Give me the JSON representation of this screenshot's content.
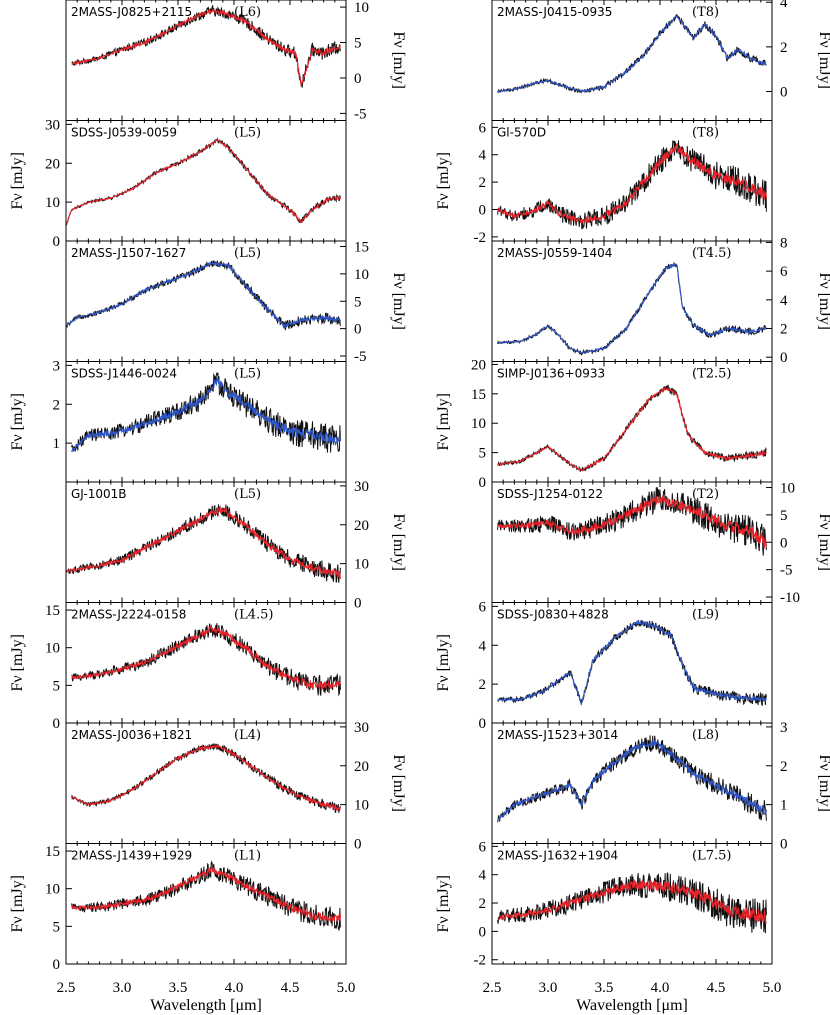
{
  "figure": {
    "xlabel": "Wavelength [μm]",
    "ylabel": "Fν [mJy]",
    "xticks": [
      "2.5",
      "3.0",
      "3.5",
      "4.0",
      "4.5",
      "5.0"
    ],
    "xlim": [
      2.5,
      5.0
    ],
    "colors": {
      "black": "#111111",
      "red": "#e8232a",
      "blue": "#2f56c8"
    }
  },
  "chart_data": [
    {
      "type": "line",
      "object": "2MASS-J0825+2115",
      "sptype": "(L6)",
      "column": "left",
      "row": 0,
      "model_color": "red",
      "axis_side": "right",
      "ylim": [
        -6,
        11
      ],
      "yticks": [
        "10",
        "5",
        "0",
        "-5"
      ],
      "ytick_values": [
        10,
        5,
        0,
        -5
      ],
      "x": [
        2.55,
        2.8,
        3.0,
        3.2,
        3.4,
        3.6,
        3.8,
        3.95,
        4.1,
        4.3,
        4.45,
        4.55,
        4.6,
        4.7,
        4.8,
        4.95
      ],
      "y": [
        2.0,
        2.8,
        4.0,
        5.0,
        6.5,
        8.2,
        9.5,
        9.0,
        8.0,
        5.5,
        4.0,
        3.5,
        -1.0,
        4.0,
        3.5,
        4.5
      ],
      "noise": 0.7
    },
    {
      "type": "line",
      "object": "SDSS-J0539-0059",
      "sptype": "(L5)",
      "column": "left",
      "row": 1,
      "model_color": "red",
      "axis_side": "left",
      "ylim": [
        0,
        31
      ],
      "yticks": [
        "30",
        "20",
        "10",
        "0"
      ],
      "ytick_values": [
        30,
        20,
        10,
        0
      ],
      "x": [
        2.5,
        2.55,
        2.7,
        2.9,
        3.1,
        3.3,
        3.5,
        3.7,
        3.85,
        3.95,
        4.1,
        4.3,
        4.5,
        4.6,
        4.7,
        4.85,
        4.95
      ],
      "y": [
        4.0,
        8.0,
        10.0,
        11.0,
        13.5,
        17.5,
        20.0,
        23.0,
        26.0,
        24.0,
        19.0,
        12.0,
        8.0,
        5.0,
        8.0,
        11.0,
        11.0
      ],
      "noise": 0.6
    },
    {
      "type": "line",
      "object": "2MASS-J1507-1627",
      "sptype": "(L5)",
      "column": "left",
      "row": 2,
      "model_color": "blue",
      "axis_side": "right",
      "ylim": [
        -6,
        16
      ],
      "yticks": [
        "15",
        "10",
        "5",
        "0",
        "-5"
      ],
      "ytick_values": [
        15,
        10,
        5,
        0,
        -5
      ],
      "x": [
        2.5,
        2.6,
        2.8,
        3.0,
        3.2,
        3.4,
        3.6,
        3.8,
        3.95,
        4.1,
        4.3,
        4.45,
        4.6,
        4.8,
        4.95
      ],
      "y": [
        0.5,
        2.0,
        3.0,
        4.5,
        7.0,
        8.5,
        10.0,
        12.0,
        11.5,
        8.0,
        3.5,
        0.5,
        1.5,
        2.0,
        1.5
      ],
      "noise": 0.7
    },
    {
      "type": "line",
      "object": "SDSS-J1446-0024",
      "sptype": "(L5)",
      "column": "left",
      "row": 3,
      "model_color": "blue",
      "axis_side": "left",
      "ylim": [
        0.0,
        3.1
      ],
      "yticks": [
        "3",
        "2",
        "1"
      ],
      "ytick_values": [
        3,
        2,
        1
      ],
      "x": [
        2.55,
        2.7,
        2.9,
        3.1,
        3.3,
        3.5,
        3.7,
        3.85,
        3.95,
        4.1,
        4.3,
        4.5,
        4.7,
        4.95
      ],
      "y": [
        0.8,
        1.2,
        1.25,
        1.4,
        1.6,
        1.8,
        2.1,
        2.6,
        2.3,
        2.0,
        1.6,
        1.3,
        1.2,
        1.1
      ],
      "noise": 0.28
    },
    {
      "type": "line",
      "object": "GJ-1001B",
      "sptype": "(L5)",
      "column": "left",
      "row": 4,
      "model_color": "red",
      "axis_side": "right",
      "ylim": [
        0,
        31
      ],
      "yticks": [
        "30",
        "20",
        "10",
        "0"
      ],
      "ytick_values": [
        30,
        20,
        10,
        0
      ],
      "x": [
        2.5,
        2.6,
        2.8,
        3.0,
        3.2,
        3.4,
        3.6,
        3.8,
        3.9,
        4.1,
        4.3,
        4.5,
        4.7,
        4.95
      ],
      "y": [
        8.0,
        8.5,
        9.5,
        11.0,
        14.0,
        17.0,
        20.0,
        23.0,
        24.0,
        20.0,
        15.0,
        11.0,
        9.0,
        7.0
      ],
      "noise": 1.8
    },
    {
      "type": "line",
      "object": "2MASS-J2224-0158",
      "sptype": "(L4.5)",
      "column": "left",
      "row": 5,
      "model_color": "red",
      "axis_side": "left",
      "ylim": [
        0,
        16
      ],
      "yticks": [
        "15",
        "10",
        "5",
        "0"
      ],
      "ytick_values": [
        15,
        10,
        5,
        0
      ],
      "x": [
        2.55,
        2.8,
        3.0,
        3.2,
        3.4,
        3.6,
        3.8,
        3.9,
        4.1,
        4.3,
        4.5,
        4.7,
        4.95
      ],
      "y": [
        6.0,
        6.5,
        7.2,
        8.0,
        9.5,
        11.0,
        12.5,
        12.0,
        10.0,
        7.5,
        6.0,
        5.0,
        5.0
      ],
      "noise": 1.0
    },
    {
      "type": "line",
      "object": "2MASS-J0036+1821",
      "sptype": "(L4)",
      "column": "left",
      "row": 6,
      "model_color": "red",
      "axis_side": "right",
      "ylim": [
        0,
        31
      ],
      "yticks": [
        "30",
        "20",
        "10",
        "0"
      ],
      "ytick_values": [
        30,
        20,
        10,
        0
      ],
      "x": [
        2.55,
        2.7,
        2.9,
        3.1,
        3.3,
        3.5,
        3.7,
        3.85,
        4.0,
        4.2,
        4.4,
        4.6,
        4.8,
        4.95
      ],
      "y": [
        12.0,
        10.0,
        11.0,
        14.0,
        18.0,
        22.0,
        24.5,
        25.0,
        23.0,
        19.0,
        15.0,
        12.0,
        10.0,
        9.0
      ],
      "noise": 0.9
    },
    {
      "type": "line",
      "object": "2MASS-J1439+1929",
      "sptype": "(L1)",
      "column": "left",
      "row": 7,
      "model_color": "red",
      "axis_side": "left",
      "ylim": [
        0,
        16
      ],
      "yticks": [
        "15",
        "10",
        "5",
        "0"
      ],
      "ytick_values": [
        15,
        10,
        5,
        0
      ],
      "x": [
        2.55,
        2.8,
        3.0,
        3.2,
        3.4,
        3.6,
        3.8,
        3.9,
        4.1,
        4.3,
        4.5,
        4.7,
        4.95
      ],
      "y": [
        7.5,
        7.5,
        8.0,
        8.5,
        9.5,
        11.0,
        12.5,
        12.0,
        10.5,
        9.0,
        7.5,
        6.5,
        6.0
      ],
      "noise": 1.1
    },
    {
      "type": "line",
      "object": "2MASS-J0415-0935",
      "sptype": "(T8)",
      "column": "right",
      "row": 0,
      "model_color": "blue",
      "axis_side": "right",
      "ylim": [
        -1.3,
        4.1
      ],
      "yticks": [
        "4",
        "2",
        "0"
      ],
      "ytick_values": [
        4,
        2,
        0
      ],
      "x": [
        2.55,
        2.7,
        2.9,
        3.0,
        3.1,
        3.3,
        3.5,
        3.7,
        3.85,
        4.0,
        4.15,
        4.25,
        4.3,
        4.4,
        4.5,
        4.6,
        4.7,
        4.8,
        4.95
      ],
      "y": [
        0.0,
        0.1,
        0.4,
        0.5,
        0.3,
        0.0,
        0.2,
        0.9,
        1.6,
        2.6,
        3.4,
        2.7,
        2.4,
        3.0,
        2.5,
        1.5,
        1.9,
        1.5,
        1.2
      ],
      "noise": 0.12
    },
    {
      "type": "line",
      "object": "Gl-570D",
      "sptype": "(T8)",
      "column": "right",
      "row": 1,
      "model_color": "red",
      "axis_side": "left",
      "ylim": [
        -2.3,
        6.5
      ],
      "yticks": [
        "6",
        "4",
        "2",
        "0",
        "-2"
      ],
      "ytick_values": [
        6,
        4,
        2,
        0,
        -2
      ],
      "x": [
        2.55,
        2.7,
        2.9,
        3.0,
        3.1,
        3.3,
        3.5,
        3.7,
        3.85,
        4.0,
        4.15,
        4.3,
        4.5,
        4.7,
        4.95
      ],
      "y": [
        0.0,
        -0.5,
        0.0,
        0.5,
        -0.3,
        -0.8,
        -0.5,
        0.5,
        2.0,
        3.5,
        4.5,
        3.5,
        2.5,
        2.0,
        1.0
      ],
      "noise": 0.8
    },
    {
      "type": "line",
      "object": "2MASS-J0559-1404",
      "sptype": "(T4.5)",
      "column": "right",
      "row": 2,
      "model_color": "blue",
      "axis_side": "right",
      "ylim": [
        -0.3,
        8.1
      ],
      "yticks": [
        "8",
        "6",
        "4",
        "2",
        "0"
      ],
      "ytick_values": [
        8,
        6,
        4,
        2,
        0
      ],
      "x": [
        2.55,
        2.75,
        2.9,
        3.0,
        3.1,
        3.2,
        3.3,
        3.5,
        3.7,
        3.9,
        4.05,
        4.15,
        4.2,
        4.3,
        4.45,
        4.6,
        4.8,
        4.95
      ],
      "y": [
        1.0,
        1.1,
        1.6,
        2.2,
        1.5,
        0.6,
        0.3,
        0.6,
        2.0,
        4.5,
        6.2,
        6.5,
        3.5,
        2.2,
        1.5,
        2.0,
        1.8,
        2.0
      ],
      "noise": 0.18
    },
    {
      "type": "line",
      "object": "SIMP-J0136+0933",
      "sptype": "(T2.5)",
      "column": "right",
      "row": 3,
      "model_color": "red",
      "axis_side": "left",
      "ylim": [
        0,
        20.5
      ],
      "yticks": [
        "20",
        "15",
        "10",
        "5",
        "0"
      ],
      "ytick_values": [
        20,
        15,
        10,
        5,
        0
      ],
      "x": [
        2.55,
        2.75,
        2.9,
        3.0,
        3.1,
        3.2,
        3.3,
        3.5,
        3.7,
        3.9,
        4.05,
        4.15,
        4.25,
        4.4,
        4.6,
        4.8,
        4.95
      ],
      "y": [
        3.0,
        3.5,
        5.0,
        6.0,
        4.5,
        3.0,
        2.0,
        4.0,
        9.0,
        14.0,
        16.0,
        15.0,
        8.0,
        5.0,
        4.0,
        4.5,
        5.0
      ],
      "noise": 0.5
    },
    {
      "type": "line",
      "object": "SDSS-J1254-0122",
      "sptype": "(T2)",
      "column": "right",
      "row": 4,
      "model_color": "red",
      "axis_side": "right",
      "ylim": [
        -11,
        11
      ],
      "yticks": [
        "10",
        "5",
        "0",
        "-5",
        "-10"
      ],
      "ytick_values": [
        10,
        5,
        0,
        -5,
        -10
      ],
      "x": [
        2.55,
        2.8,
        3.0,
        3.2,
        3.4,
        3.6,
        3.8,
        4.0,
        4.2,
        4.4,
        4.6,
        4.8,
        4.95
      ],
      "y": [
        3.0,
        3.0,
        3.5,
        2.0,
        2.5,
        4.0,
        6.0,
        8.0,
        6.5,
        5.0,
        3.0,
        2.0,
        0.0
      ],
      "noise": 2.2
    },
    {
      "type": "line",
      "object": "SDSS-J0830+4828",
      "sptype": "(L9)",
      "column": "right",
      "row": 5,
      "model_color": "blue",
      "axis_side": "left",
      "ylim": [
        0,
        6.2
      ],
      "yticks": [
        "6",
        "4",
        "2",
        "0"
      ],
      "ytick_values": [
        6,
        4,
        2,
        0
      ],
      "x": [
        2.55,
        2.75,
        2.95,
        3.1,
        3.2,
        3.3,
        3.4,
        3.6,
        3.8,
        3.95,
        4.1,
        4.2,
        4.3,
        4.5,
        4.7,
        4.95
      ],
      "y": [
        1.2,
        1.2,
        1.6,
        2.2,
        2.6,
        1.0,
        3.2,
        4.4,
        5.2,
        5.0,
        4.5,
        3.0,
        1.8,
        1.5,
        1.3,
        1.2
      ],
      "noise": 0.22
    },
    {
      "type": "line",
      "object": "2MASS-J1523+3014",
      "sptype": "(L8)",
      "column": "right",
      "row": 6,
      "model_color": "blue",
      "axis_side": "right",
      "ylim": [
        0,
        3.1
      ],
      "yticks": [
        "3",
        "2",
        "1",
        "0"
      ],
      "ytick_values": [
        3,
        2,
        1,
        0
      ],
      "x": [
        2.55,
        2.7,
        2.9,
        3.1,
        3.2,
        3.3,
        3.4,
        3.6,
        3.8,
        3.95,
        4.1,
        4.3,
        4.5,
        4.7,
        4.95
      ],
      "y": [
        0.6,
        1.0,
        1.2,
        1.4,
        1.5,
        1.0,
        1.6,
        2.1,
        2.5,
        2.6,
        2.3,
        1.8,
        1.5,
        1.2,
        0.8
      ],
      "noise": 0.2
    },
    {
      "type": "line",
      "object": "2MASS-J1632+1904",
      "sptype": "(L7.5)",
      "column": "right",
      "row": 7,
      "model_color": "red",
      "axis_side": "left",
      "ylim": [
        -2.3,
        6.2
      ],
      "yticks": [
        "6",
        "4",
        "2",
        "0",
        "-2"
      ],
      "ytick_values": [
        6,
        4,
        2,
        0,
        -2
      ],
      "x": [
        2.55,
        2.8,
        3.0,
        3.2,
        3.4,
        3.6,
        3.8,
        4.0,
        4.2,
        4.4,
        4.6,
        4.8,
        4.95
      ],
      "y": [
        1.0,
        1.2,
        1.5,
        2.0,
        2.5,
        3.0,
        3.3,
        3.2,
        3.0,
        2.4,
        1.5,
        1.2,
        1.0
      ],
      "noise": 0.9
    }
  ]
}
